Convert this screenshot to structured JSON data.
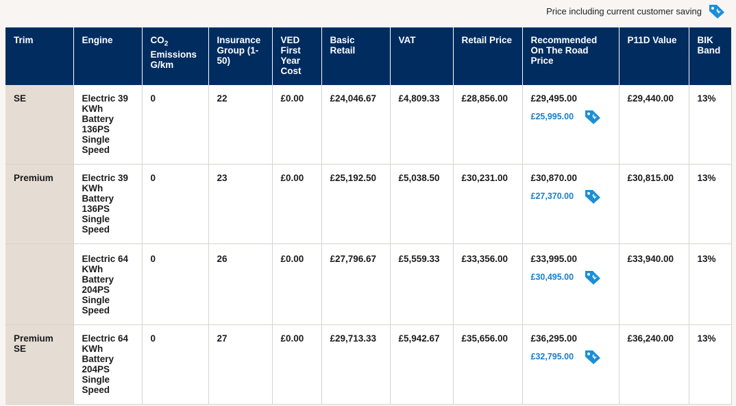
{
  "legend": {
    "text": "Price including current customer saving",
    "icon": "saving-tag-icon"
  },
  "colors": {
    "header_bg": "#002c5f",
    "trim_bg": "#e5dcd4",
    "saving_text": "#1a7ec8",
    "tag_icon": "#1a8fd8"
  },
  "headers": {
    "trim": "Trim",
    "engine": "Engine",
    "co2_a": "CO",
    "co2_sub": "2",
    "co2_b": "Emissions",
    "co2_c": "G/km",
    "insurance": "Insurance Group (1-50)",
    "ved": "VED First Year Cost",
    "basic": "Basic Retail",
    "vat": "VAT",
    "retail": "Retail Price",
    "otr": "Recommended On The Road Price",
    "p11d": "P11D Value",
    "bik": "BIK Band"
  },
  "rows": [
    {
      "trim": "SE",
      "engine": "Electric 39 KWh Battery 136PS Single Speed",
      "co2": "0",
      "insurance": "22",
      "ved": "£0.00",
      "basic": "£24,046.67",
      "vat": "£4,809.33",
      "retail": "£28,856.00",
      "otr": "£29,495.00",
      "saving": "£25,995.00",
      "p11d": "£29,440.00",
      "bik": "13%"
    },
    {
      "trim": "Premium",
      "engine": "Electric 39 KWh Battery 136PS Single Speed",
      "co2": "0",
      "insurance": "23",
      "ved": "£0.00",
      "basic": "£25,192.50",
      "vat": "£5,038.50",
      "retail": "£30,231.00",
      "otr": "£30,870.00",
      "saving": "£27,370.00",
      "p11d": "£30,815.00",
      "bik": "13%"
    },
    {
      "trim": "",
      "engine": "Electric 64 KWh Battery 204PS Single Speed",
      "co2": "0",
      "insurance": "26",
      "ved": "£0.00",
      "basic": "£27,796.67",
      "vat": "£5,559.33",
      "retail": "£33,356.00",
      "otr": "£33,995.00",
      "saving": "£30,495.00",
      "p11d": "£33,940.00",
      "bik": "13%"
    },
    {
      "trim": "Premium SE",
      "engine": "Electric 64 KWh Battery 204PS Single Speed",
      "co2": "0",
      "insurance": "27",
      "ved": "£0.00",
      "basic": "£29,713.33",
      "vat": "£5,942.67",
      "retail": "£35,656.00",
      "otr": "£36,295.00",
      "saving": "£32,795.00",
      "p11d": "£36,240.00",
      "bik": "13%"
    }
  ]
}
